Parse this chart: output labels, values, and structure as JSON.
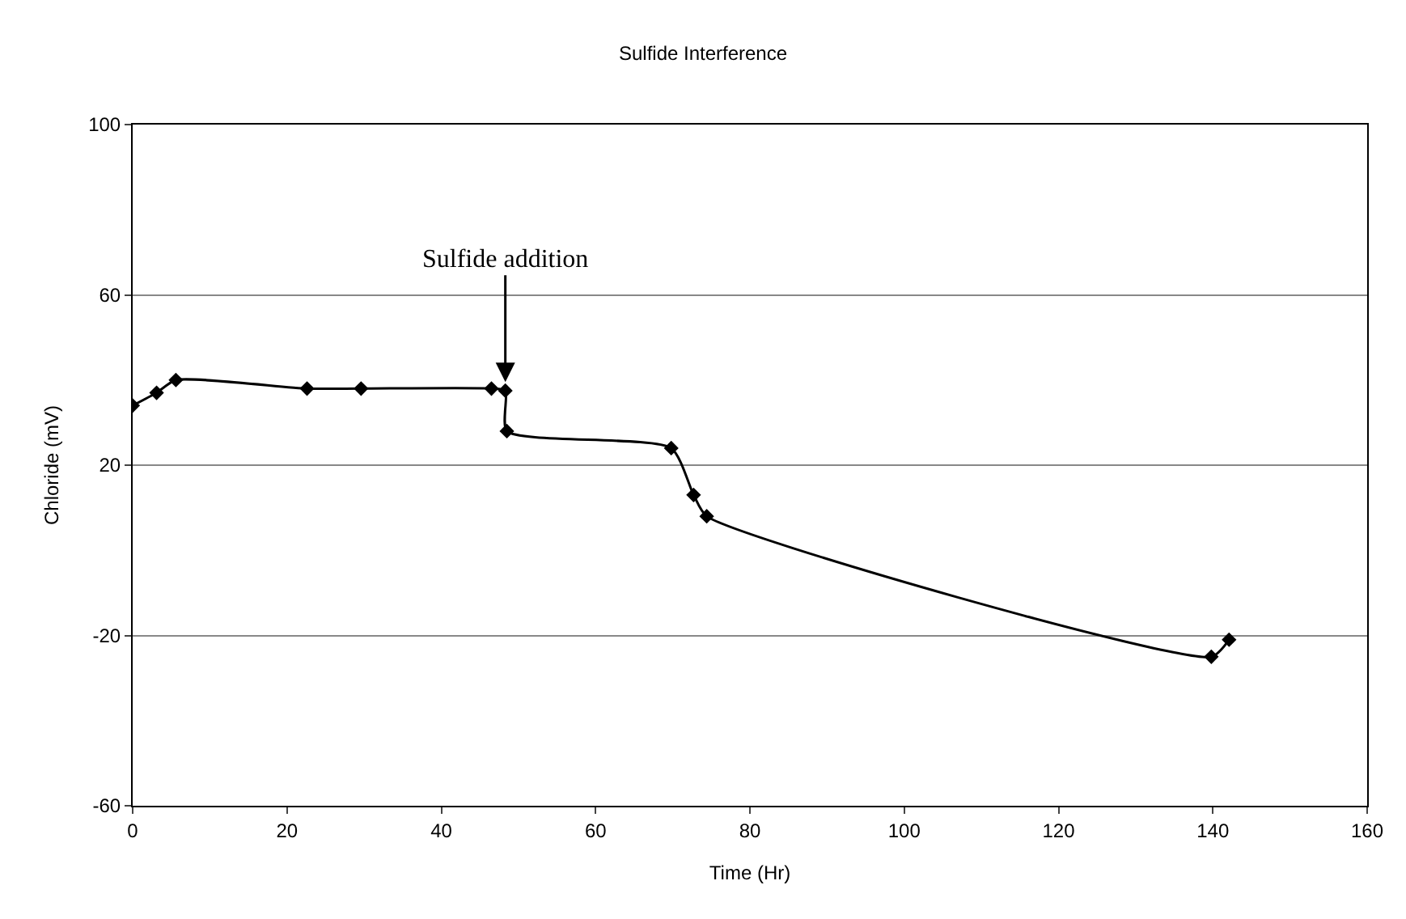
{
  "chart_data": {
    "type": "line",
    "title": "Sulfide Interference",
    "xlabel": "Time (Hr)",
    "ylabel": "Chloride (mV)",
    "x": [
      0,
      3.1,
      5.6,
      22.6,
      29.6,
      46.5,
      48.3,
      48.5,
      69.8,
      72.7,
      74.4,
      139.8,
      142.1
    ],
    "series": [
      {
        "color": "#000000",
        "values": [
          34,
          37,
          40,
          38,
          38,
          38,
          37.5,
          28,
          24,
          13,
          8,
          -25,
          -21
        ]
      }
    ],
    "xlim": [
      0,
      160
    ],
    "xticks": [
      0,
      20,
      40,
      60,
      80,
      100,
      120,
      140,
      160
    ],
    "ylim": [
      -60,
      100
    ],
    "yticks": [
      -60,
      -20,
      20,
      60,
      100
    ],
    "annotations": [
      {
        "text": "Sulfide addition",
        "x": 48.3,
        "y": 38
      }
    ],
    "grid": "y",
    "marker": "diamond",
    "line_style": "solid"
  }
}
